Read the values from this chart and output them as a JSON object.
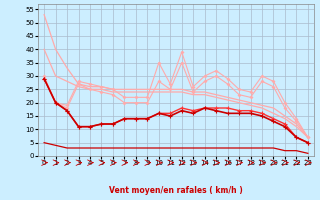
{
  "x": [
    0,
    1,
    2,
    3,
    4,
    5,
    6,
    7,
    8,
    9,
    10,
    11,
    12,
    13,
    14,
    15,
    16,
    17,
    18,
    19,
    20,
    21,
    22,
    23
  ],
  "line1": [
    53,
    40,
    33,
    27,
    26,
    26,
    25,
    25,
    25,
    25,
    25,
    25,
    25,
    24,
    24,
    23,
    22,
    21,
    20,
    19,
    18,
    15,
    12,
    7
  ],
  "line2": [
    40,
    30,
    28,
    26,
    25,
    25,
    24,
    24,
    24,
    24,
    24,
    24,
    24,
    23,
    23,
    22,
    21,
    20,
    19,
    18,
    16,
    14,
    11,
    7
  ],
  "line3": [
    30,
    20,
    19,
    28,
    27,
    26,
    25,
    22,
    22,
    22,
    35,
    27,
    39,
    26,
    30,
    32,
    29,
    25,
    24,
    30,
    28,
    20,
    14,
    7
  ],
  "line4": [
    29,
    20,
    18,
    27,
    25,
    24,
    23,
    20,
    20,
    20,
    28,
    25,
    35,
    24,
    28,
    30,
    27,
    23,
    22,
    28,
    26,
    18,
    13,
    7
  ],
  "line5": [
    29,
    20,
    17,
    11,
    11,
    12,
    12,
    14,
    14,
    14,
    16,
    16,
    18,
    17,
    18,
    18,
    18,
    17,
    17,
    16,
    14,
    12,
    7,
    5
  ],
  "line6": [
    29,
    20,
    17,
    11,
    11,
    12,
    12,
    14,
    14,
    14,
    16,
    15,
    17,
    16,
    18,
    17,
    16,
    16,
    16,
    15,
    13,
    11,
    7,
    5
  ],
  "line7": [
    5,
    4,
    3,
    3,
    3,
    3,
    3,
    3,
    3,
    3,
    3,
    3,
    3,
    3,
    3,
    3,
    3,
    3,
    3,
    3,
    3,
    2,
    2,
    1
  ],
  "bg_color": "#cceeff",
  "grid_color": "#aabbcc",
  "line1_color": "#ffaaaa",
  "line2_color": "#ffaaaa",
  "line3_color": "#ffaaaa",
  "line4_color": "#ffaaaa",
  "line5_color": "#ff3333",
  "line6_color": "#cc0000",
  "line7_color": "#cc0000",
  "xlabel": "Vent moyen/en rafales ( km/h )",
  "xlim": [
    -0.5,
    23.5
  ],
  "ylim": [
    0,
    57
  ],
  "yticks": [
    0,
    5,
    10,
    15,
    20,
    25,
    30,
    35,
    40,
    45,
    50,
    55
  ],
  "xticks": [
    0,
    1,
    2,
    3,
    4,
    5,
    6,
    7,
    8,
    9,
    10,
    11,
    12,
    13,
    14,
    15,
    16,
    17,
    18,
    19,
    20,
    21,
    22,
    23
  ]
}
